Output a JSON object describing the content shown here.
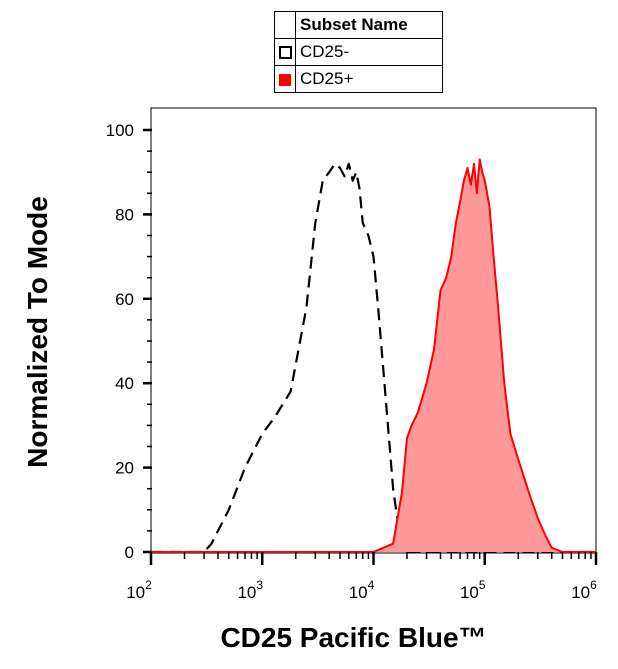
{
  "legend": {
    "header": "Subset Name",
    "entries": [
      {
        "label": "CD25-",
        "style": "dashed-outline",
        "color": "#000000"
      },
      {
        "label": "CD25+",
        "style": "filled",
        "color": "#ff0000"
      }
    ]
  },
  "chart_data": {
    "type": "area",
    "title": "",
    "xlabel": "CD25 Pacific Blue™",
    "ylabel": "Normalized To Mode",
    "x_scale": "log",
    "xlim": [
      100,
      1000000
    ],
    "ylim": [
      0,
      100
    ],
    "yticks": [
      0,
      20,
      40,
      60,
      80,
      100
    ],
    "xticks": [
      {
        "base": "10",
        "exp": "2",
        "value": 100
      },
      {
        "base": "10",
        "exp": "3",
        "value": 1000
      },
      {
        "base": "10",
        "exp": "4",
        "value": 10000
      },
      {
        "base": "10",
        "exp": "5",
        "value": 100000
      },
      {
        "base": "10",
        "exp": "6",
        "value": 1000000
      }
    ],
    "grid": false,
    "legend_position": "top-center",
    "series": [
      {
        "name": "CD25-",
        "style": "dashed",
        "color": "#000000",
        "fill": "none",
        "x": [
          100,
          200,
          300,
          350,
          500,
          700,
          1000,
          1300,
          1800,
          2500,
          3000,
          3500,
          4000,
          4500,
          5000,
          5500,
          6000,
          6500,
          7000,
          7500,
          8000,
          9000,
          10000,
          11000,
          13000,
          15000,
          17000,
          19000,
          21000,
          25000,
          35000,
          1000000
        ],
        "y": [
          0,
          0,
          0,
          2,
          10,
          20,
          28,
          32,
          38,
          58,
          78,
          88,
          90,
          92,
          91,
          89,
          92,
          88,
          90,
          86,
          78,
          75,
          70,
          58,
          35,
          15,
          5,
          1,
          0,
          0,
          0,
          0
        ]
      },
      {
        "name": "CD25+",
        "style": "solid",
        "color": "#ff0000",
        "fill": "#ff9999",
        "x": [
          100,
          10000,
          15000,
          18000,
          20000,
          22000,
          25000,
          30000,
          35000,
          40000,
          45000,
          50000,
          55000,
          60000,
          65000,
          70000,
          75000,
          80000,
          85000,
          90000,
          95000,
          100000,
          110000,
          120000,
          130000,
          150000,
          170000,
          200000,
          250000,
          300000,
          350000,
          400000,
          500000,
          600000,
          1000000
        ],
        "y": [
          0,
          0,
          2,
          14,
          27,
          30,
          33,
          40,
          48,
          62,
          65,
          70,
          78,
          83,
          88,
          91,
          87,
          92,
          85,
          93,
          90,
          88,
          82,
          70,
          60,
          40,
          28,
          22,
          14,
          8,
          4,
          1,
          0,
          0,
          0
        ]
      }
    ]
  }
}
